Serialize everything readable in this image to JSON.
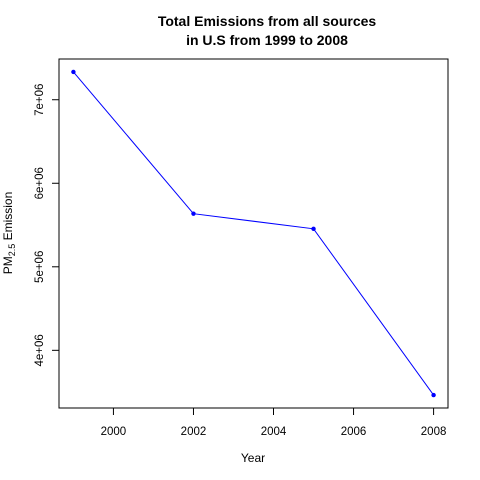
{
  "chart_data": {
    "type": "line",
    "title_lines": [
      "Total Emissions from all sources",
      "in U.S from 1999 to 2008"
    ],
    "xlabel": "Year",
    "ylabel": {
      "main": "PM",
      "sub": "2.5",
      "rest": " Emission"
    },
    "x": [
      1999,
      2002,
      2005,
      2008
    ],
    "series": [
      {
        "values": [
          7332967,
          5635780,
          5454703,
          3464206
        ],
        "color": "#0000ff"
      }
    ],
    "xlim": [
      1998.64,
      2008.36
    ],
    "ylim": [
      3309516,
      7487657
    ],
    "xticks": [
      2000,
      2002,
      2004,
      2006,
      2008
    ],
    "xtick_labels": [
      "2000",
      "2002",
      "2004",
      "2006",
      "2008"
    ],
    "yticks": [
      4000000,
      5000000,
      6000000,
      7000000
    ],
    "ytick_labels": [
      "4e+06",
      "5e+06",
      "6e+06",
      "7e+06"
    ],
    "grid": false,
    "legend": "none"
  }
}
